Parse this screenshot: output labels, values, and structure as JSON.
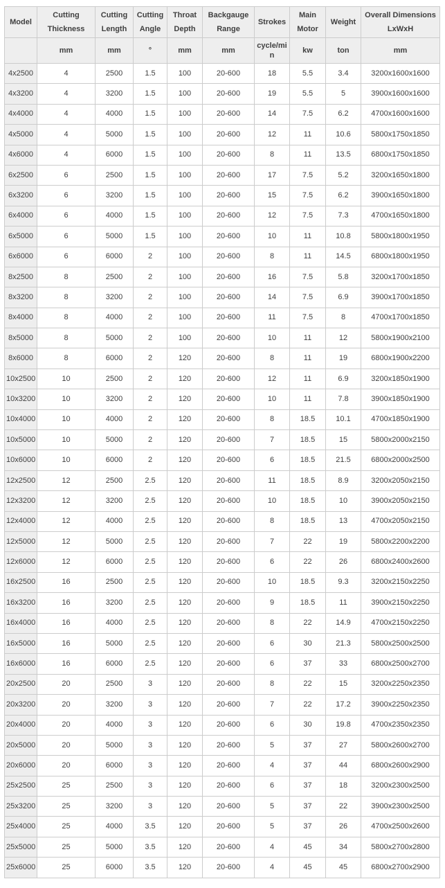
{
  "colors": {
    "header_bg": "#eeeeee",
    "model_col_bg": "#eeeeee",
    "row_bg": "#ffffff",
    "border": "#cccccc",
    "text": "#404040"
  },
  "table": {
    "columns": [
      {
        "key": "model",
        "title": "Model",
        "unit": ""
      },
      {
        "key": "cutting-thickness",
        "title": "Cutting Thickness",
        "unit": "mm"
      },
      {
        "key": "cutting-length",
        "title": "Cutting Length",
        "unit": "mm"
      },
      {
        "key": "cutting-angle",
        "title": "Cutting Angle",
        "unit": "°"
      },
      {
        "key": "throat-depth",
        "title": "Throat Depth",
        "unit": "mm"
      },
      {
        "key": "backgauge-range",
        "title": "Backgauge Range",
        "unit": "mm"
      },
      {
        "key": "strokes",
        "title": "Strokes",
        "unit": "cycle/min"
      },
      {
        "key": "main-motor",
        "title": "Main Motor",
        "unit": "kw"
      },
      {
        "key": "weight",
        "title": "Weight",
        "unit": "ton"
      },
      {
        "key": "overall-dimensions",
        "title": "Overall Dimensions LxWxH",
        "unit": "mm"
      }
    ],
    "rows": [
      [
        "4x2500",
        "4",
        "2500",
        "1.5",
        "100",
        "20-600",
        "18",
        "5.5",
        "3.4",
        "3200x1600x1600"
      ],
      [
        "4x3200",
        "4",
        "3200",
        "1.5",
        "100",
        "20-600",
        "19",
        "5.5",
        "5",
        "3900x1600x1600"
      ],
      [
        "4x4000",
        "4",
        "4000",
        "1.5",
        "100",
        "20-600",
        "14",
        "7.5",
        "6.2",
        "4700x1600x1600"
      ],
      [
        "4x5000",
        "4",
        "5000",
        "1.5",
        "100",
        "20-600",
        "12",
        "11",
        "10.6",
        "5800x1750x1850"
      ],
      [
        "4x6000",
        "4",
        "6000",
        "1.5",
        "100",
        "20-600",
        "8",
        "11",
        "13.5",
        "6800x1750x1850"
      ],
      [
        "6x2500",
        "6",
        "2500",
        "1.5",
        "100",
        "20-600",
        "17",
        "7.5",
        "5.2",
        "3200x1650x1800"
      ],
      [
        "6x3200",
        "6",
        "3200",
        "1.5",
        "100",
        "20-600",
        "15",
        "7.5",
        "6.2",
        "3900x1650x1800"
      ],
      [
        "6x4000",
        "6",
        "4000",
        "1.5",
        "100",
        "20-600",
        "12",
        "7.5",
        "7.3",
        "4700x1650x1800"
      ],
      [
        "6x5000",
        "6",
        "5000",
        "1.5",
        "100",
        "20-600",
        "10",
        "11",
        "10.8",
        "5800x1800x1950"
      ],
      [
        "6x6000",
        "6",
        "6000",
        "2",
        "100",
        "20-600",
        "8",
        "11",
        "14.5",
        "6800x1800x1950"
      ],
      [
        "8x2500",
        "8",
        "2500",
        "2",
        "100",
        "20-600",
        "16",
        "7.5",
        "5.8",
        "3200x1700x1850"
      ],
      [
        "8x3200",
        "8",
        "3200",
        "2",
        "100",
        "20-600",
        "14",
        "7.5",
        "6.9",
        "3900x1700x1850"
      ],
      [
        "8x4000",
        "8",
        "4000",
        "2",
        "100",
        "20-600",
        "11",
        "7.5",
        "8",
        "4700x1700x1850"
      ],
      [
        "8x5000",
        "8",
        "5000",
        "2",
        "100",
        "20-600",
        "10",
        "11",
        "12",
        "5800x1900x2100"
      ],
      [
        "8x6000",
        "8",
        "6000",
        "2",
        "120",
        "20-600",
        "8",
        "11",
        "19",
        "6800x1900x2200"
      ],
      [
        "10x2500",
        "10",
        "2500",
        "2",
        "120",
        "20-600",
        "12",
        "11",
        "6.9",
        "3200x1850x1900"
      ],
      [
        "10x3200",
        "10",
        "3200",
        "2",
        "120",
        "20-600",
        "10",
        "11",
        "7.8",
        "3900x1850x1900"
      ],
      [
        "10x4000",
        "10",
        "4000",
        "2",
        "120",
        "20-600",
        "8",
        "18.5",
        "10.1",
        "4700x1850x1900"
      ],
      [
        "10x5000",
        "10",
        "5000",
        "2",
        "120",
        "20-600",
        "7",
        "18.5",
        "15",
        "5800x2000x2150"
      ],
      [
        "10x6000",
        "10",
        "6000",
        "2",
        "120",
        "20-600",
        "6",
        "18.5",
        "21.5",
        "6800x2000x2500"
      ],
      [
        "12x2500",
        "12",
        "2500",
        "2.5",
        "120",
        "20-600",
        "11",
        "18.5",
        "8.9",
        "3200x2050x2150"
      ],
      [
        "12x3200",
        "12",
        "3200",
        "2.5",
        "120",
        "20-600",
        "10",
        "18.5",
        "10",
        "3900x2050x2150"
      ],
      [
        "12x4000",
        "12",
        "4000",
        "2.5",
        "120",
        "20-600",
        "8",
        "18.5",
        "13",
        "4700x2050x2150"
      ],
      [
        "12x5000",
        "12",
        "5000",
        "2.5",
        "120",
        "20-600",
        "7",
        "22",
        "19",
        "5800x2200x2200"
      ],
      [
        "12x6000",
        "12",
        "6000",
        "2.5",
        "120",
        "20-600",
        "6",
        "22",
        "26",
        "6800x2400x2600"
      ],
      [
        "16x2500",
        "16",
        "2500",
        "2.5",
        "120",
        "20-600",
        "10",
        "18.5",
        "9.3",
        "3200x2150x2250"
      ],
      [
        "16x3200",
        "16",
        "3200",
        "2.5",
        "120",
        "20-600",
        "9",
        "18.5",
        "11",
        "3900x2150x2250"
      ],
      [
        "16x4000",
        "16",
        "4000",
        "2.5",
        "120",
        "20-600",
        "8",
        "22",
        "14.9",
        "4700x2150x2250"
      ],
      [
        "16x5000",
        "16",
        "5000",
        "2.5",
        "120",
        "20-600",
        "6",
        "30",
        "21.3",
        "5800x2500x2500"
      ],
      [
        "16x6000",
        "16",
        "6000",
        "2.5",
        "120",
        "20-600",
        "6",
        "37",
        "33",
        "6800x2500x2700"
      ],
      [
        "20x2500",
        "20",
        "2500",
        "3",
        "120",
        "20-600",
        "8",
        "22",
        "15",
        "3200x2250x2350"
      ],
      [
        "20x3200",
        "20",
        "3200",
        "3",
        "120",
        "20-600",
        "7",
        "22",
        "17.2",
        "3900x2250x2350"
      ],
      [
        "20x4000",
        "20",
        "4000",
        "3",
        "120",
        "20-600",
        "6",
        "30",
        "19.8",
        "4700x2350x2350"
      ],
      [
        "20x5000",
        "20",
        "5000",
        "3",
        "120",
        "20-600",
        "5",
        "37",
        "27",
        "5800x2600x2700"
      ],
      [
        "20x6000",
        "20",
        "6000",
        "3",
        "120",
        "20-600",
        "4",
        "37",
        "44",
        "6800x2600x2900"
      ],
      [
        "25x2500",
        "25",
        "2500",
        "3",
        "120",
        "20-600",
        "6",
        "37",
        "18",
        "3200x2300x2500"
      ],
      [
        "25x3200",
        "25",
        "3200",
        "3",
        "120",
        "20-600",
        "5",
        "37",
        "22",
        "3900x2300x2500"
      ],
      [
        "25x4000",
        "25",
        "4000",
        "3.5",
        "120",
        "20-600",
        "5",
        "37",
        "26",
        "4700x2500x2600"
      ],
      [
        "25x5000",
        "25",
        "5000",
        "3.5",
        "120",
        "20-600",
        "4",
        "45",
        "34",
        "5800x2700x2800"
      ],
      [
        "25x6000",
        "25",
        "6000",
        "3.5",
        "120",
        "20-600",
        "4",
        "45",
        "45",
        "6800x2700x2900"
      ]
    ]
  }
}
